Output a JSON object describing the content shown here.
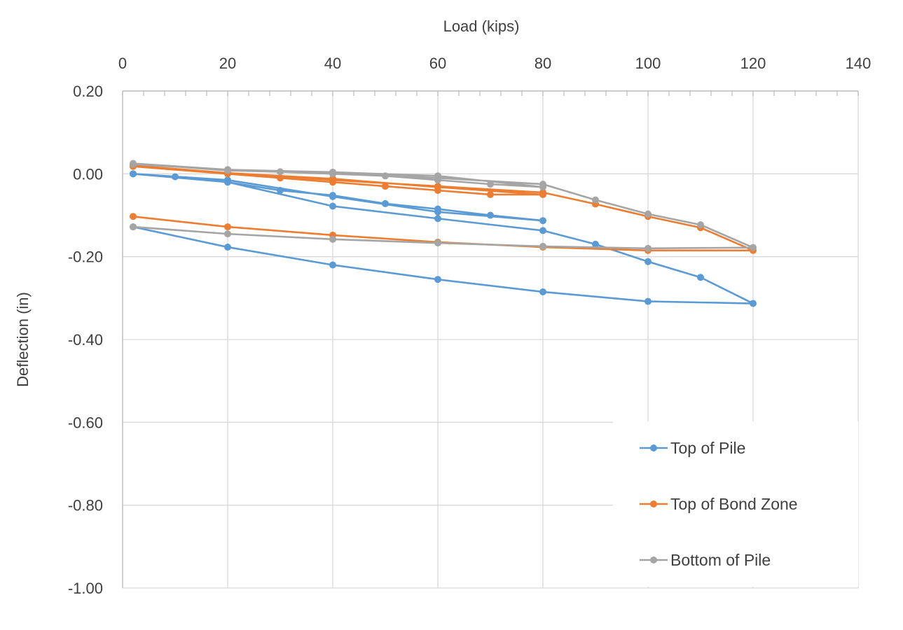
{
  "chart_data": {
    "type": "line",
    "title": "",
    "xlabel": "Load (kips)",
    "ylabel": "Deflection (in)",
    "xlim": [
      0,
      140
    ],
    "ylim": [
      -1.0,
      0.2
    ],
    "x_ticks": [
      0,
      20,
      40,
      60,
      80,
      100,
      120,
      140
    ],
    "y_ticks": [
      0.2,
      0.0,
      -0.2,
      -0.4,
      -0.6,
      -0.8,
      -1.0
    ],
    "x_tick_labels": [
      "0",
      "20",
      "40",
      "60",
      "80",
      "100",
      "120",
      "140"
    ],
    "y_tick_labels": [
      "0.20",
      "0.00",
      "-0.20",
      "-0.40",
      "-0.60",
      "-0.80",
      "-1.00"
    ],
    "x_axis_position": "top",
    "grid": true,
    "legend_position": "bottom-right",
    "series": [
      {
        "name": "Top of Pile",
        "color": "#5B9BD5",
        "points": [
          [
            2,
            0.0
          ],
          [
            10,
            -0.007
          ],
          [
            20,
            -0.02
          ],
          [
            30,
            -0.04
          ],
          [
            40,
            -0.052
          ],
          [
            50,
            -0.072
          ],
          [
            60,
            -0.085
          ],
          [
            70,
            -0.1
          ],
          [
            80,
            -0.113
          ],
          [
            60,
            -0.092
          ],
          [
            40,
            -0.055
          ],
          [
            20,
            -0.015
          ],
          [
            2,
            0.0
          ],
          [
            20,
            -0.02
          ],
          [
            40,
            -0.078
          ],
          [
            60,
            -0.108
          ],
          [
            80,
            -0.137
          ],
          [
            90,
            -0.17
          ],
          [
            100,
            -0.212
          ],
          [
            110,
            -0.25
          ],
          [
            120,
            -0.313
          ],
          [
            100,
            -0.308
          ],
          [
            80,
            -0.285
          ],
          [
            60,
            -0.255
          ],
          [
            40,
            -0.22
          ],
          [
            20,
            -0.177
          ],
          [
            2,
            -0.128
          ]
        ]
      },
      {
        "name": "Top of Bond Zone",
        "color": "#ED7D31",
        "points": [
          [
            2,
            0.018
          ],
          [
            20,
            0.0
          ],
          [
            30,
            -0.01
          ],
          [
            40,
            -0.02
          ],
          [
            50,
            -0.03
          ],
          [
            60,
            -0.04
          ],
          [
            70,
            -0.05
          ],
          [
            80,
            -0.05
          ],
          [
            60,
            -0.032
          ],
          [
            40,
            -0.012
          ],
          [
            20,
            0.002
          ],
          [
            2,
            0.02
          ],
          [
            20,
            0.002
          ],
          [
            40,
            -0.015
          ],
          [
            60,
            -0.03
          ],
          [
            80,
            -0.045
          ],
          [
            90,
            -0.073
          ],
          [
            100,
            -0.103
          ],
          [
            110,
            -0.13
          ],
          [
            120,
            -0.185
          ],
          [
            100,
            -0.185
          ],
          [
            80,
            -0.177
          ],
          [
            60,
            -0.165
          ],
          [
            40,
            -0.148
          ],
          [
            20,
            -0.128
          ],
          [
            2,
            -0.103
          ]
        ]
      },
      {
        "name": "Bottom of Pile",
        "color": "#A5A5A5",
        "points": [
          [
            2,
            0.023
          ],
          [
            20,
            0.01
          ],
          [
            30,
            0.005
          ],
          [
            40,
            0.0
          ],
          [
            50,
            -0.005
          ],
          [
            60,
            -0.015
          ],
          [
            70,
            -0.025
          ],
          [
            80,
            -0.032
          ],
          [
            60,
            -0.005
          ],
          [
            40,
            0.004
          ],
          [
            20,
            0.01
          ],
          [
            2,
            0.025
          ],
          [
            20,
            0.008
          ],
          [
            40,
            0.002
          ],
          [
            60,
            -0.01
          ],
          [
            80,
            -0.025
          ],
          [
            90,
            -0.063
          ],
          [
            100,
            -0.097
          ],
          [
            110,
            -0.123
          ],
          [
            120,
            -0.178
          ],
          [
            100,
            -0.18
          ],
          [
            80,
            -0.175
          ],
          [
            60,
            -0.167
          ],
          [
            40,
            -0.158
          ],
          [
            20,
            -0.145
          ],
          [
            2,
            -0.128
          ]
        ]
      }
    ]
  }
}
